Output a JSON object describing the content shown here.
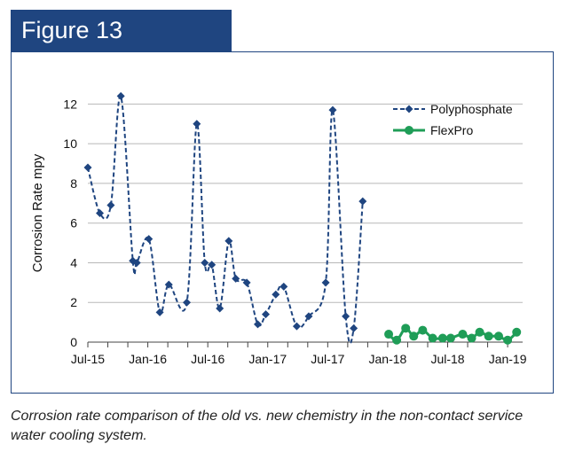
{
  "figure": {
    "label": "Figure 13",
    "caption": "Corrosion rate comparison of the old vs. new chemistry in the non-contact service water cooling system.",
    "header_color": "#1f4580"
  },
  "chart_data": {
    "type": "line",
    "title": "",
    "xlabel": "",
    "ylabel": "Corrosion Rate mpy",
    "ylim": [
      0,
      13
    ],
    "yticks": [
      0,
      2,
      4,
      6,
      8,
      10,
      12
    ],
    "xticks": [
      {
        "label": "Jul-15",
        "value": 0
      },
      {
        "label": "Jan-16",
        "value": 6
      },
      {
        "label": "Jul-16",
        "value": 12
      },
      {
        "label": "Jan-17",
        "value": 18
      },
      {
        "label": "Jul-17",
        "value": 24
      },
      {
        "label": "Jan-18",
        "value": 30
      },
      {
        "label": "Jul-18",
        "value": 36
      },
      {
        "label": "Jan-19",
        "value": 42
      }
    ],
    "xunit": "months since Jul-15",
    "xlim": [
      0,
      43.5
    ],
    "grid": "horizontal",
    "legend_position": "top-right",
    "series": [
      {
        "name": "Polyphosphate",
        "color": "#1f4580",
        "line": "dashed",
        "marker": "diamond",
        "x": [
          0,
          1.2,
          2.3,
          3.3,
          4.5,
          4.9,
          6.1,
          7.2,
          8.1,
          9.9,
          10.9,
          11.7,
          12.4,
          13.2,
          14.1,
          14.8,
          15.9,
          17.0,
          17.8,
          18.8,
          19.6,
          20.9,
          22.1,
          23.8,
          24.5,
          25.8,
          26.6,
          27.5
        ],
        "values": [
          8.8,
          6.5,
          6.9,
          12.4,
          4.1,
          4.0,
          5.2,
          1.5,
          2.9,
          2.0,
          11.0,
          4.0,
          3.9,
          1.7,
          5.1,
          3.2,
          3.0,
          0.9,
          1.4,
          2.4,
          2.8,
          0.8,
          1.3,
          3.0,
          11.7,
          1.3,
          0.7,
          7.1
        ]
      },
      {
        "name": "FlexPro",
        "color": "#1f9d57",
        "line": "solid",
        "marker": "circle",
        "x": [
          30.1,
          30.9,
          31.8,
          32.6,
          33.5,
          34.5,
          35.5,
          36.3,
          37.5,
          38.4,
          39.2,
          40.1,
          41.1,
          42.0,
          42.9
        ],
        "values": [
          0.4,
          0.1,
          0.7,
          0.3,
          0.6,
          0.2,
          0.2,
          0.2,
          0.4,
          0.2,
          0.5,
          0.3,
          0.3,
          0.1,
          0.5
        ]
      }
    ]
  }
}
